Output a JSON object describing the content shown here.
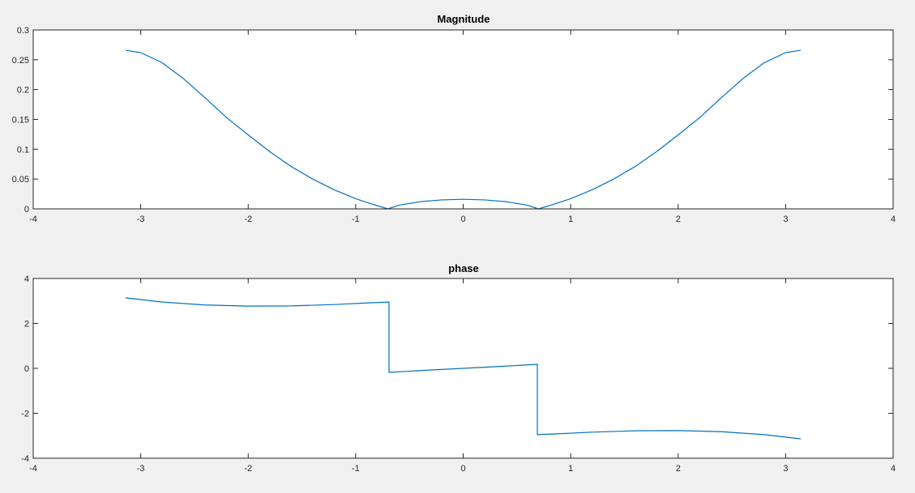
{
  "chart_data": [
    {
      "type": "line",
      "title": "Magnitude",
      "xlabel": "",
      "ylabel": "",
      "xlim": [
        -4,
        4
      ],
      "ylim": [
        0,
        0.3
      ],
      "xticks": [
        -4,
        -3,
        -2,
        -1,
        0,
        1,
        2,
        3,
        4
      ],
      "yticks": [
        0,
        0.05,
        0.1,
        0.15,
        0.2,
        0.25,
        0.3
      ],
      "xtick_labels": [
        "-4",
        "-3",
        "-2",
        "-1",
        "0",
        "1",
        "2",
        "3",
        "4"
      ],
      "ytick_labels": [
        "0",
        "0.05",
        "0.1",
        "0.15",
        "0.2",
        "0.25",
        "0.3"
      ],
      "grid": false,
      "series": [
        {
          "color": "#0072bd",
          "x": [
            -3.1416,
            -3.0,
            -2.8,
            -2.6,
            -2.4,
            -2.2,
            -2.0,
            -1.8,
            -1.6,
            -1.4,
            -1.2,
            -1.0,
            -0.85,
            -0.7,
            -0.6,
            -0.4,
            -0.2,
            0.0,
            0.2,
            0.4,
            0.6,
            0.7,
            0.85,
            1.0,
            1.2,
            1.4,
            1.6,
            1.8,
            2.0,
            2.2,
            2.4,
            2.6,
            2.8,
            3.0,
            3.1416
          ],
          "y": [
            0.266,
            0.262,
            0.245,
            0.218,
            0.186,
            0.153,
            0.124,
            0.096,
            0.071,
            0.05,
            0.032,
            0.017,
            0.008,
            0.0,
            0.006,
            0.012,
            0.015,
            0.016,
            0.015,
            0.012,
            0.006,
            0.0,
            0.008,
            0.017,
            0.032,
            0.05,
            0.071,
            0.096,
            0.124,
            0.153,
            0.186,
            0.218,
            0.245,
            0.262,
            0.266
          ]
        }
      ]
    },
    {
      "type": "line",
      "title": "phase",
      "xlabel": "",
      "ylabel": "",
      "xlim": [
        -4,
        4
      ],
      "ylim": [
        -4,
        4
      ],
      "xticks": [
        -4,
        -3,
        -2,
        -1,
        0,
        1,
        2,
        3,
        4
      ],
      "yticks": [
        -4,
        -2,
        0,
        2,
        4
      ],
      "xtick_labels": [
        "-4",
        "-3",
        "-2",
        "-1",
        "0",
        "1",
        "2",
        "3",
        "4"
      ],
      "ytick_labels": [
        "-4",
        "-2",
        "0",
        "2",
        "4"
      ],
      "grid": false,
      "series": [
        {
          "color": "#0072bd",
          "x": [
            -3.1416,
            -2.8,
            -2.4,
            -2.0,
            -1.6,
            -1.2,
            -0.9,
            -0.69,
            -0.69,
            -0.4,
            0.0,
            0.4,
            0.69,
            0.69,
            0.9,
            1.2,
            1.6,
            2.0,
            2.4,
            2.8,
            3.1416
          ],
          "y": [
            3.14,
            2.95,
            2.82,
            2.77,
            2.78,
            2.84,
            2.91,
            2.95,
            -0.18,
            -0.1,
            0.0,
            0.1,
            0.18,
            -2.95,
            -2.91,
            -2.84,
            -2.78,
            -2.77,
            -2.82,
            -2.95,
            -3.14
          ]
        }
      ]
    }
  ]
}
